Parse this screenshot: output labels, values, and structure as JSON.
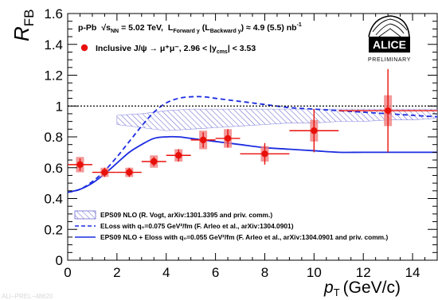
{
  "chart_data": {
    "type": "scatter",
    "title": "",
    "xlabel_main": "p",
    "xlabel_sub": "T",
    "xlabel_unit": "(GeV/c)",
    "ylabel_main": "R",
    "ylabel_sub": "FB",
    "xlim": [
      0,
      15
    ],
    "ylim": [
      0,
      1.6
    ],
    "xticks": [
      "0",
      "2",
      "4",
      "6",
      "8",
      "10",
      "12",
      "14"
    ],
    "yticks": [
      "0",
      "0.2",
      "0.4",
      "0.6",
      "0.8",
      "1",
      "1.2",
      "1.4",
      "1.6"
    ],
    "reference_line_y": 1,
    "header": {
      "system": "p-Pb",
      "sqrt_s": "√s",
      "energy": "= 5.02 TeV,",
      "lumi": "L",
      "lumi_fwd_sub": "Forward y",
      "lumi_bwd_open": "(L",
      "lumi_bwd_sub": "Backward y",
      "lumi_value": ") ≈ 4.9 (5.5) nb",
      "lumi_unit_sup": "-1"
    },
    "data_label": "Inclusive J/ψ → μ⁺μ⁻, 2.96 < |y",
    "data_label_sub": "cms",
    "data_label_end": "| < 3.53",
    "experiment": "ALICE",
    "status": "PRELIMINARY",
    "watermark": "ALI−PREL−48620",
    "legend": [
      {
        "label": "EPS09 NLO (R. Vogt, arXiv:1301.3395 and priv. comm.)",
        "style": "hatched-band"
      },
      {
        "label": "ELoss with q₀=0.075 GeV²/fm (F. Arleo et al., arXiv:1304.0901)",
        "style": "dashed"
      },
      {
        "label": "EPS09 NLO + Eloss with q₀=0.055 GeV²/fm (F. Arleo et al., arXiv:1304.0901 and priv. comm.)",
        "style": "solid"
      }
    ],
    "series": [
      {
        "name": "Inclusive J/ψ → μ⁺μ⁻, 2.96 < |ycms| < 3.53",
        "points": [
          {
            "x": 0.5,
            "y": 0.62,
            "xerr": 0.5,
            "stat": 0.04,
            "syst": 0.05
          },
          {
            "x": 1.5,
            "y": 0.57,
            "xerr": 0.5,
            "stat": 0.03,
            "syst": 0.03
          },
          {
            "x": 2.5,
            "y": 0.57,
            "xerr": 0.5,
            "stat": 0.03,
            "syst": 0.03
          },
          {
            "x": 3.5,
            "y": 0.64,
            "xerr": 0.5,
            "stat": 0.03,
            "syst": 0.04
          },
          {
            "x": 4.5,
            "y": 0.68,
            "xerr": 0.5,
            "stat": 0.04,
            "syst": 0.04
          },
          {
            "x": 5.5,
            "y": 0.78,
            "xerr": 0.5,
            "stat": 0.05,
            "syst": 0.06
          },
          {
            "x": 6.5,
            "y": 0.79,
            "xerr": 0.5,
            "stat": 0.06,
            "syst": 0.06
          },
          {
            "x": 8.0,
            "y": 0.69,
            "xerr": 1.0,
            "stat": 0.07,
            "syst": 0.05
          },
          {
            "x": 10.0,
            "y": 0.84,
            "xerr": 1.0,
            "stat": 0.14,
            "syst": 0.07
          },
          {
            "x": 13.0,
            "y": 0.97,
            "xerr": 2.0,
            "stat": 0.27,
            "syst": 0.1
          }
        ]
      },
      {
        "name": "ELoss with q₀=0.075 GeV²/fm",
        "x": [
          0,
          0.5,
          1,
          1.5,
          2,
          2.5,
          3,
          3.5,
          4,
          4.5,
          5,
          5.5,
          6,
          6.5,
          7,
          7.5,
          8,
          9,
          10,
          11,
          12,
          13,
          14,
          15
        ],
        "y": [
          0.44,
          0.46,
          0.51,
          0.58,
          0.67,
          0.77,
          0.87,
          0.96,
          1.02,
          1.05,
          1.06,
          1.06,
          1.05,
          1.04,
          1.03,
          1.02,
          1.01,
          0.99,
          0.98,
          0.97,
          0.96,
          0.95,
          0.94,
          0.93
        ]
      },
      {
        "name": "EPS09 NLO + Eloss with q₀=0.055 GeV²/fm",
        "x": [
          0,
          0.5,
          1,
          1.5,
          2,
          2.5,
          3,
          3.5,
          4,
          4.5,
          5,
          5.5,
          6,
          6.5,
          7,
          8,
          9,
          10,
          11,
          12,
          13,
          14,
          15
        ],
        "y": [
          0.44,
          0.46,
          0.5,
          0.56,
          0.63,
          0.7,
          0.75,
          0.79,
          0.8,
          0.8,
          0.79,
          0.78,
          0.77,
          0.76,
          0.75,
          0.73,
          0.72,
          0.71,
          0.7,
          0.7,
          0.7,
          0.7,
          0.7
        ]
      }
    ],
    "band": {
      "name": "EPS09 NLO",
      "x": [
        2,
        3,
        4,
        5,
        6,
        7,
        8,
        9,
        10,
        11,
        12,
        13,
        14,
        15
      ],
      "lo": [
        0.88,
        0.86,
        0.84,
        0.85,
        0.86,
        0.87,
        0.88,
        0.89,
        0.89,
        0.9,
        0.9,
        0.91,
        0.91,
        0.92
      ],
      "hi": [
        0.94,
        0.95,
        0.97,
        0.98,
        0.98,
        0.98,
        0.98,
        0.98,
        0.98,
        0.98,
        0.98,
        0.98,
        0.98,
        0.98
      ]
    }
  }
}
